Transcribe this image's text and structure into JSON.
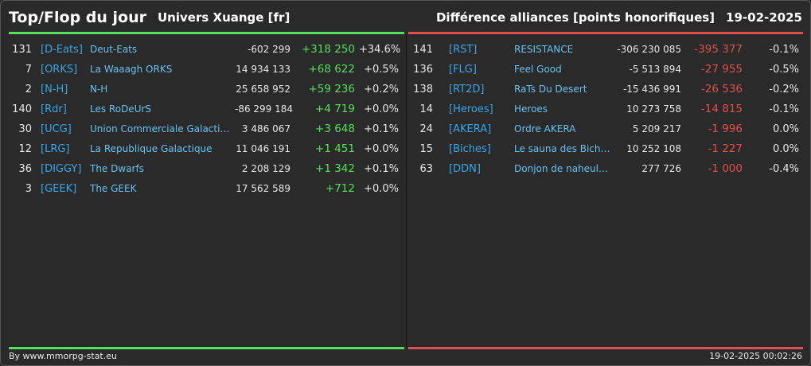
{
  "header": {
    "title": "Top/Flop du jour",
    "universe": "Univers Xuange [fr]",
    "category": "Différence alliances [points honorifiques]",
    "date": "19-02-2025"
  },
  "colors": {
    "top_accent": "#55e05a",
    "flop_accent": "#e0504a",
    "tag_color": "#3aa6e6",
    "background": "#2a2a2a"
  },
  "top": [
    {
      "rank": "131",
      "tag": "[D-Eats]",
      "name": "Deut-Eats",
      "points": "-602 299",
      "diff": "+318 250",
      "pct": "+34.6%"
    },
    {
      "rank": "7",
      "tag": "[ORKS]",
      "name": "La Waaagh ORKS",
      "points": "14 934 133",
      "diff": "+68 622",
      "pct": "+0.5%"
    },
    {
      "rank": "2",
      "tag": "[N-H]",
      "name": "N-H",
      "points": "25 658 952",
      "diff": "+59 236",
      "pct": "+0.2%"
    },
    {
      "rank": "140",
      "tag": "[Rdr]",
      "name": "Les RoDeUrS",
      "points": "-86 299 184",
      "diff": "+4 719",
      "pct": "+0.0%"
    },
    {
      "rank": "30",
      "tag": "[UCG]",
      "name": "Union Commerciale Galactique",
      "points": "3 486 067",
      "diff": "+3 648",
      "pct": "+0.1%"
    },
    {
      "rank": "12",
      "tag": "[LRG]",
      "name": "La Republique Galactique",
      "points": "11 046 191",
      "diff": "+1 451",
      "pct": "+0.0%"
    },
    {
      "rank": "36",
      "tag": "[DIGGY]",
      "name": "The Dwarfs",
      "points": "2 208 129",
      "diff": "+1 342",
      "pct": "+0.1%"
    },
    {
      "rank": "3",
      "tag": "[GEEK]",
      "name": "The GEEK",
      "points": "17 562 589",
      "diff": "+712",
      "pct": "+0.0%"
    }
  ],
  "flop": [
    {
      "rank": "141",
      "tag": "[RST]",
      "name": "RESISTANCE",
      "points": "-306 230 085",
      "diff": "-395 377",
      "pct": "-0.1%"
    },
    {
      "rank": "136",
      "tag": "[FLG]",
      "name": "Feel Good",
      "points": "-5 513 894",
      "diff": "-27 955",
      "pct": "-0.5%"
    },
    {
      "rank": "138",
      "tag": "[RT2D]",
      "name": "RaTs Du Desert",
      "points": "-15 436 991",
      "diff": "-26 536",
      "pct": "-0.2%"
    },
    {
      "rank": "14",
      "tag": "[Heroes]",
      "name": "Heroes",
      "points": "10 273 758",
      "diff": "-14 815",
      "pct": "-0.1%"
    },
    {
      "rank": "24",
      "tag": "[AKERA]",
      "name": "Ordre AKERA",
      "points": "5 209 217",
      "diff": "-1 996",
      "pct": "0.0%"
    },
    {
      "rank": "15",
      "tag": "[Biches]",
      "name": "Le sauna des Biche…",
      "points": "10 252 108",
      "diff": "-1 227",
      "pct": "0.0%"
    },
    {
      "rank": "63",
      "tag": "[DDN]",
      "name": "Donjon de naheulb…",
      "points": "277 726",
      "diff": "-1 000",
      "pct": "-0.4%"
    }
  ],
  "footer": {
    "credit": "By www.mmorpg-stat.eu",
    "timestamp": "19-02-2025 00:02:26"
  }
}
